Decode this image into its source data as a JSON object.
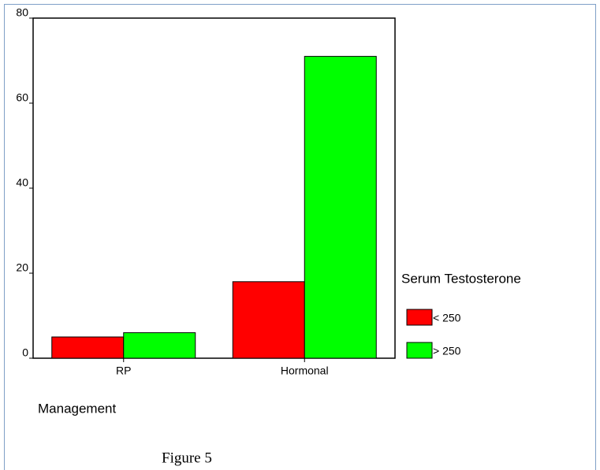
{
  "chart_data": {
    "type": "bar",
    "caption": "Figure 5",
    "x_label": "Management",
    "legend_title": "Serum Testosterone",
    "categories": [
      "RP",
      "Hormonal"
    ],
    "series": [
      {
        "name": "< 250",
        "color": "#ff0000",
        "values": [
          5,
          18
        ]
      },
      {
        "name": "> 250",
        "color": "#00ff00",
        "values": [
          6,
          71
        ]
      }
    ],
    "ylim": [
      0,
      80
    ],
    "yticks": [
      0,
      20,
      40,
      60,
      80
    ]
  }
}
